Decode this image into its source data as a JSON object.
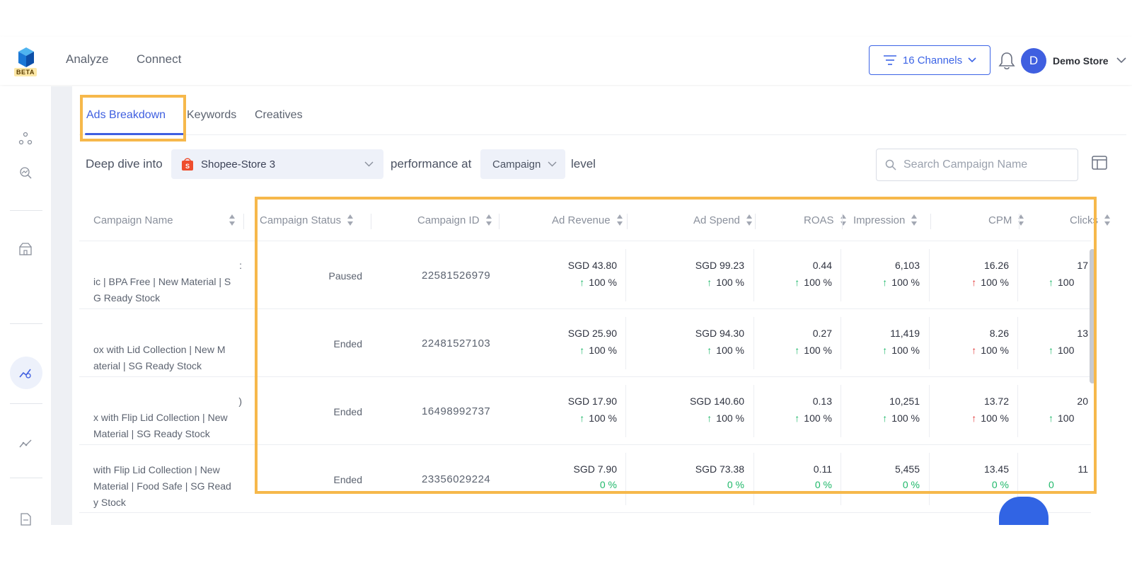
{
  "nav": {
    "beta_label": "BETA",
    "analyze": "Analyze",
    "connect": "Connect",
    "channels_label": "16 Channels",
    "avatar_initial": "D",
    "store_name": "Demo Store"
  },
  "tabs": [
    {
      "label": "Ads Breakdown",
      "active": true
    },
    {
      "label": "Keywords",
      "active": false
    },
    {
      "label": "Creatives",
      "active": false
    }
  ],
  "filter": {
    "prefix": "Deep dive into",
    "store": "Shopee-Store 3",
    "middle": "performance at",
    "level": "Campaign",
    "suffix": "level",
    "search_placeholder": "Search Campaign Name"
  },
  "table": {
    "columns": [
      "Campaign Name",
      "Campaign Status",
      "Campaign ID",
      "Ad Revenue",
      "Ad Spend",
      "ROAS",
      "Impression",
      "CPM",
      "Clicks"
    ],
    "rows": [
      {
        "name_l1": ":",
        "name_l2": "ic | BPA Free | New Material | S",
        "name_l3": "G Ready Stock",
        "status": "Paused",
        "id": "22581526979",
        "revenue": "SGD 43.80",
        "revenue_chg": "100 %",
        "spend": "SGD 99.23",
        "spend_chg": "100 %",
        "roas": "0.44",
        "roas_chg": "100 %",
        "impression": "6,103",
        "impression_chg": "100 %",
        "cpm": "16.26",
        "cpm_chg": "100 %",
        "clicks": "17",
        "clicks_chg": "100"
      },
      {
        "name_l1": "",
        "name_l2": "ox with Lid Collection | New M",
        "name_l3": "aterial | SG Ready Stock",
        "status": "Ended",
        "id": "22481527103",
        "revenue": "SGD 25.90",
        "revenue_chg": "100 %",
        "spend": "SGD 94.30",
        "spend_chg": "100 %",
        "roas": "0.27",
        "roas_chg": "100 %",
        "impression": "11,419",
        "impression_chg": "100 %",
        "cpm": "8.26",
        "cpm_chg": "100 %",
        "clicks": "13",
        "clicks_chg": "100"
      },
      {
        "name_l1": ")",
        "name_l2": "x with Flip Lid Collection | New",
        "name_l3": "Material | SG Ready Stock",
        "status": "Ended",
        "id": "16498992737",
        "revenue": "SGD 17.90",
        "revenue_chg": "100 %",
        "spend": "SGD 140.60",
        "spend_chg": "100 %",
        "roas": "0.13",
        "roas_chg": "100 %",
        "impression": "10,251",
        "impression_chg": "100 %",
        "cpm": "13.72",
        "cpm_chg": "100 %",
        "clicks": "20",
        "clicks_chg": "100"
      },
      {
        "name_l1": "with Flip Lid Collection | New",
        "name_l2": "Material | Food Safe | SG Read",
        "name_l3": "y Stock",
        "status": "Ended",
        "id": "23356029224",
        "revenue": "SGD 7.90",
        "revenue_chg": "0 %",
        "spend": "SGD 73.38",
        "spend_chg": "0 %",
        "roas": "0.11",
        "roas_chg": "0 %",
        "impression": "5,455",
        "impression_chg": "0 %",
        "cpm": "13.45",
        "cpm_chg": "0 %",
        "clicks": "11",
        "clicks_chg": "0"
      }
    ]
  },
  "colors": {
    "accent": "#3f5fe0",
    "highlight": "#f6b84b",
    "up_green": "#1fb86a",
    "up_red": "#e23c3c"
  }
}
